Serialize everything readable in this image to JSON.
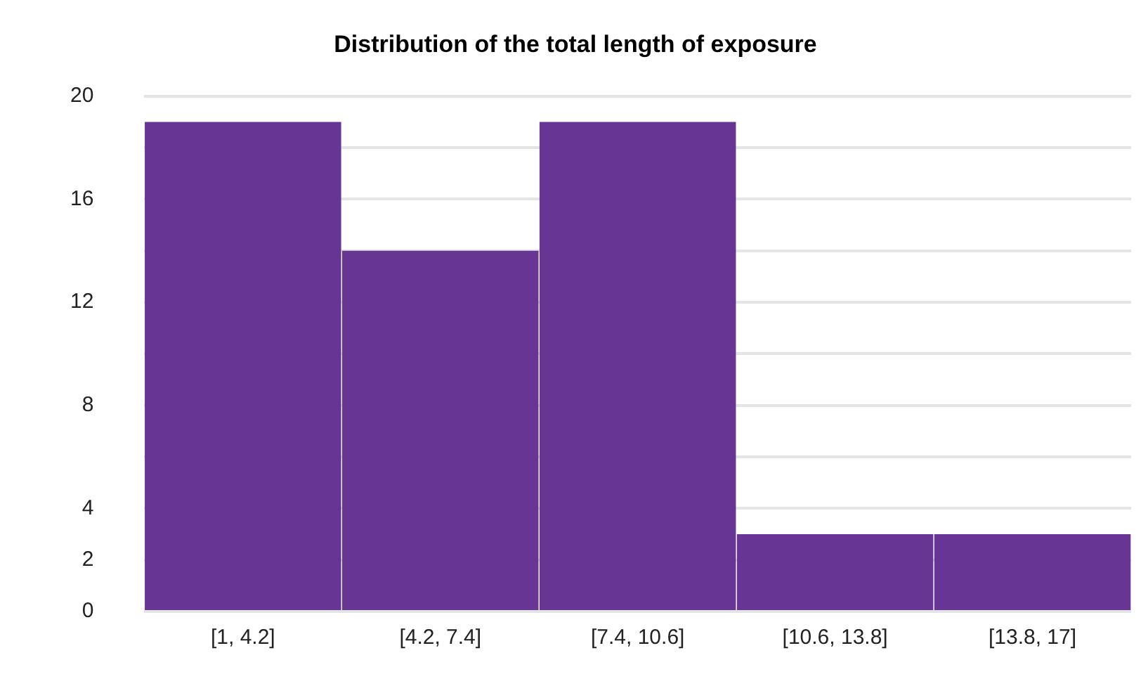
{
  "chart_data": {
    "type": "bar",
    "title": "Distribution of the total length of exposure",
    "categories": [
      "[1, 4.2]",
      "[4.2, 7.4]",
      "[7.4, 10.6]",
      "[10.6, 13.8]",
      "[13.8, 17]"
    ],
    "values": [
      19,
      14,
      19,
      3,
      3
    ],
    "color": "#673695",
    "ylim": [
      0,
      20
    ],
    "yticks": [
      0,
      2,
      4,
      {
        "value": 6,
        "label": null
      },
      8,
      {
        "value": 10,
        "label": null
      },
      12,
      {
        "value": 14,
        "label": null
      },
      16,
      {
        "value": 18,
        "label": null
      },
      20
    ],
    "grid": "y",
    "legend": false
  }
}
